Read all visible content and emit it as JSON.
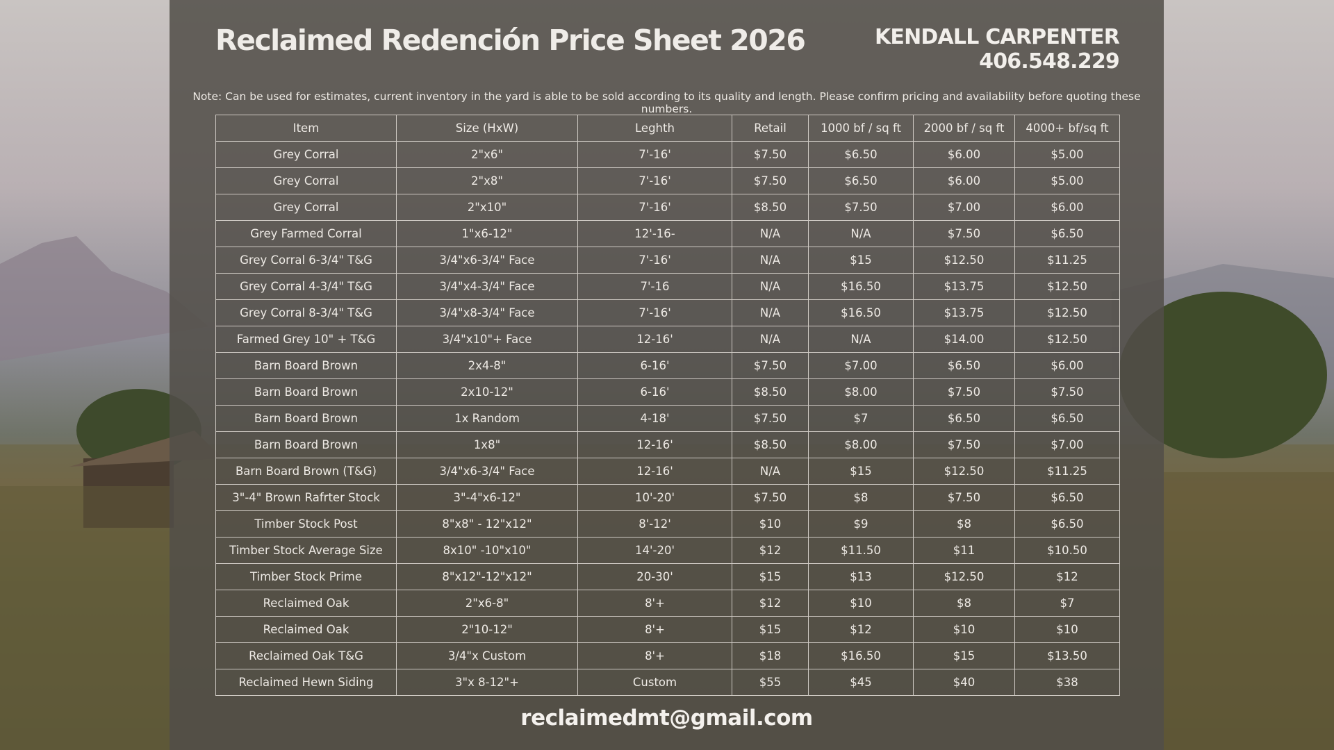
{
  "header": {
    "title": "Reclaimed Redención Price Sheet 2026",
    "name": "KENDALL CARPENTER",
    "phone": "406.548.229"
  },
  "note": "Note: Can be used for estimates, current inventory in the yard is able to be sold according to its quality and length. Please confirm pricing and availability before quoting these numbers.",
  "table": {
    "columns": [
      "Item",
      "Size (HxW)",
      "Leghth",
      "Retail",
      "1000 bf / sq ft",
      "2000 bf / sq ft",
      "4000+ bf/sq ft"
    ],
    "rows": [
      [
        "Grey Corral",
        "2\"x6\"",
        "7'-16'",
        "$7.50",
        "$6.50",
        "$6.00",
        "$5.00"
      ],
      [
        "Grey Corral",
        "2\"x8\"",
        "7'-16'",
        "$7.50",
        "$6.50",
        "$6.00",
        "$5.00"
      ],
      [
        "Grey Corral",
        "2\"x10\"",
        "7'-16'",
        "$8.50",
        "$7.50",
        "$7.00",
        "$6.00"
      ],
      [
        "Grey Farmed Corral",
        "1\"x6-12\"",
        "12'-16-",
        "N/A",
        "N/A",
        "$7.50",
        "$6.50"
      ],
      [
        "Grey Corral 6-3/4\" T&G",
        "3/4\"x6-3/4\" Face",
        "7'-16'",
        "N/A",
        "$15",
        "$12.50",
        "$11.25"
      ],
      [
        "Grey Corral 4-3/4\" T&G",
        "3/4\"x4-3/4\" Face",
        "7'-16",
        "N/A",
        "$16.50",
        "$13.75",
        "$12.50"
      ],
      [
        "Grey Corral 8-3/4\" T&G",
        "3/4\"x8-3/4\" Face",
        "7'-16'",
        "N/A",
        "$16.50",
        "$13.75",
        "$12.50"
      ],
      [
        "Farmed Grey 10\" + T&G",
        "3/4\"x10\"+ Face",
        "12-16'",
        "N/A",
        "N/A",
        "$14.00",
        "$12.50"
      ],
      [
        "Barn Board Brown",
        "2x4-8\"",
        "6-16'",
        "$7.50",
        "$7.00",
        "$6.50",
        "$6.00"
      ],
      [
        "Barn Board Brown",
        "2x10-12\"",
        "6-16'",
        "$8.50",
        "$8.00",
        "$7.50",
        "$7.50"
      ],
      [
        "Barn Board Brown",
        "1x Random",
        "4-18'",
        "$7.50",
        "$7",
        "$6.50",
        "$6.50"
      ],
      [
        "Barn Board Brown",
        "1x8\"",
        "12-16'",
        "$8.50",
        "$8.00",
        "$7.50",
        "$7.00"
      ],
      [
        "Barn Board Brown (T&G)",
        "3/4\"x6-3/4\" Face",
        "12-16'",
        "N/A",
        "$15",
        "$12.50",
        "$11.25"
      ],
      [
        "3\"-4\" Brown Rafrter Stock",
        "3\"-4\"x6-12\"",
        "10'-20'",
        "$7.50",
        "$8",
        "$7.50",
        "$6.50"
      ],
      [
        "Timber Stock Post",
        "8\"x8\" - 12\"x12\"",
        "8'-12'",
        "$10",
        "$9",
        "$8",
        "$6.50"
      ],
      [
        "Timber Stock Average Size",
        "8x10\" -10\"x10\"",
        "14'-20'",
        "$12",
        "$11.50",
        "$11",
        "$10.50"
      ],
      [
        "Timber Stock Prime",
        "8\"x12\"-12\"x12\"",
        "20-30'",
        "$15",
        "$13",
        "$12.50",
        "$12"
      ],
      [
        "Reclaimed Oak",
        "2\"x6-8\"",
        "8'+",
        "$12",
        "$10",
        "$8",
        "$7"
      ],
      [
        "Reclaimed Oak",
        "2\"10-12\"",
        "8'+",
        "$15",
        "$12",
        "$10",
        "$10"
      ],
      [
        "Reclaimed Oak T&G",
        "3/4\"x Custom",
        "8'+",
        "$18",
        "$16.50",
        "$15",
        "$13.50"
      ],
      [
        "Reclaimed Hewn Siding",
        "3\"x 8-12\"+",
        "Custom",
        "$55",
        "$45",
        "$40",
        "$38"
      ]
    ]
  },
  "footer": {
    "email": "reclaimedmt@gmail.com"
  }
}
